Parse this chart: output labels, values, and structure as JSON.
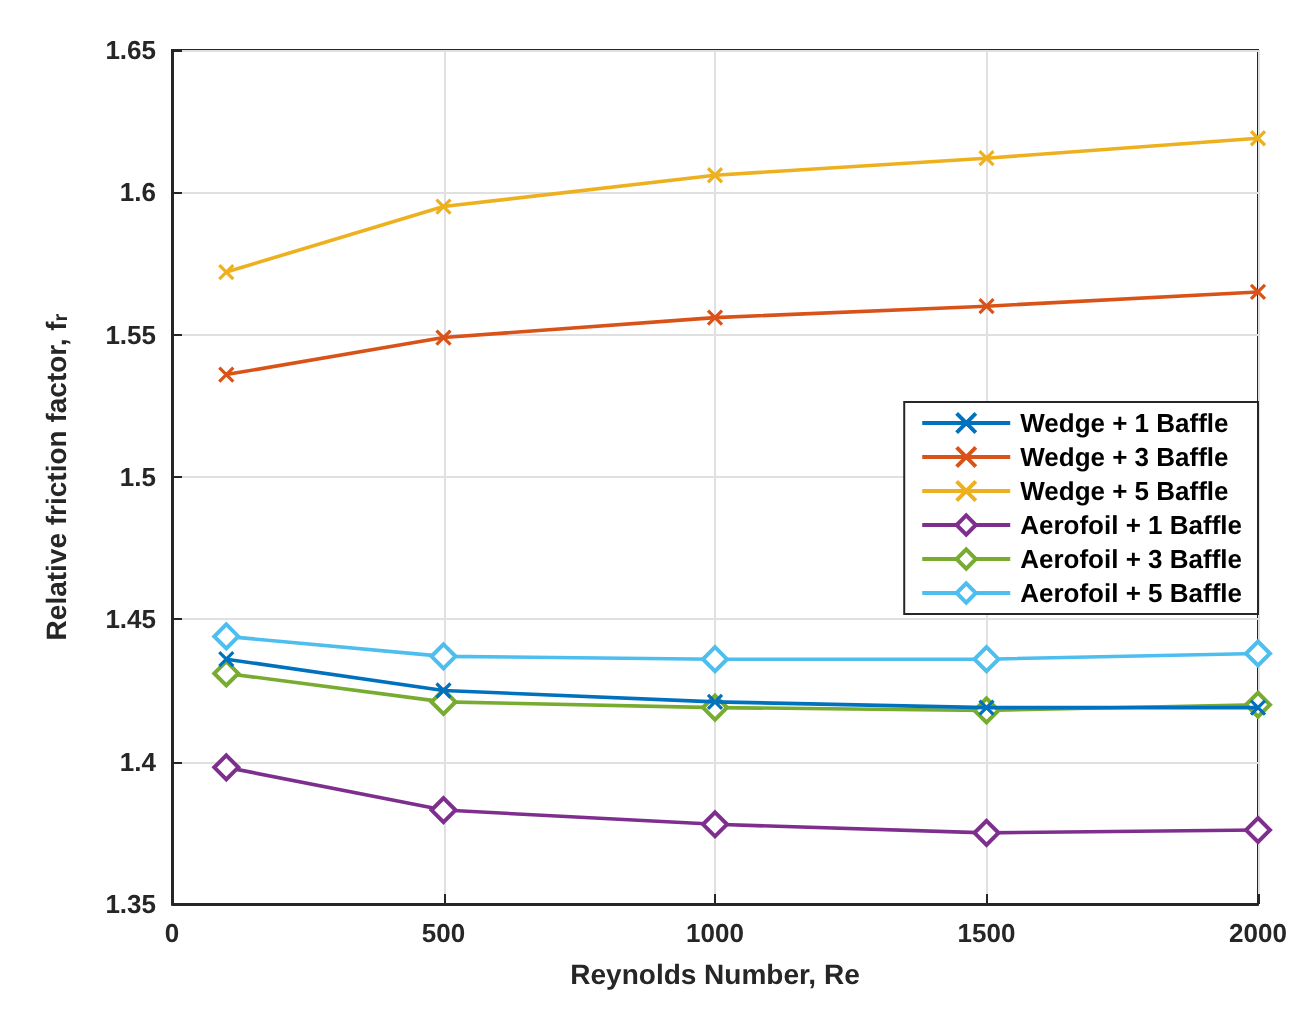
{
  "chart_data": {
    "type": "line",
    "xlabel": "Reynolds Number, Re",
    "ylabel": "Relative friction factor, f$_{r}$",
    "x": [
      100,
      500,
      1000,
      1500,
      2000
    ],
    "xlim": [
      0,
      2000
    ],
    "xticks": [
      0,
      500,
      1000,
      1500,
      2000
    ],
    "ylim": [
      1.35,
      1.65
    ],
    "yticks": [
      1.35,
      1.4,
      1.45,
      1.5,
      1.55,
      1.6,
      1.65
    ],
    "grid": true,
    "legend": "right",
    "series": [
      {
        "name": "Wedge + 1 Baffle",
        "color": "#0072bd",
        "marker": "cross",
        "values": [
          1.436,
          1.425,
          1.421,
          1.419,
          1.419
        ]
      },
      {
        "name": "Wedge + 3 Baffle",
        "color": "#d95319",
        "marker": "cross",
        "values": [
          1.536,
          1.549,
          1.556,
          1.56,
          1.565
        ]
      },
      {
        "name": "Wedge + 5 Baffle",
        "color": "#edb120",
        "marker": "cross",
        "values": [
          1.572,
          1.595,
          1.606,
          1.612,
          1.619
        ]
      },
      {
        "name": "Aerofoil + 1 Baffle",
        "color": "#7e2f8e",
        "marker": "diamond",
        "values": [
          1.398,
          1.383,
          1.378,
          1.375,
          1.376
        ]
      },
      {
        "name": "Aerofoil + 3 Baffle",
        "color": "#77ac30",
        "marker": "diamond",
        "values": [
          1.431,
          1.421,
          1.419,
          1.418,
          1.42
        ]
      },
      {
        "name": "Aerofoil + 5 Baffle",
        "color": "#4dbeee",
        "marker": "diamond",
        "values": [
          1.444,
          1.437,
          1.436,
          1.436,
          1.438
        ]
      }
    ]
  }
}
